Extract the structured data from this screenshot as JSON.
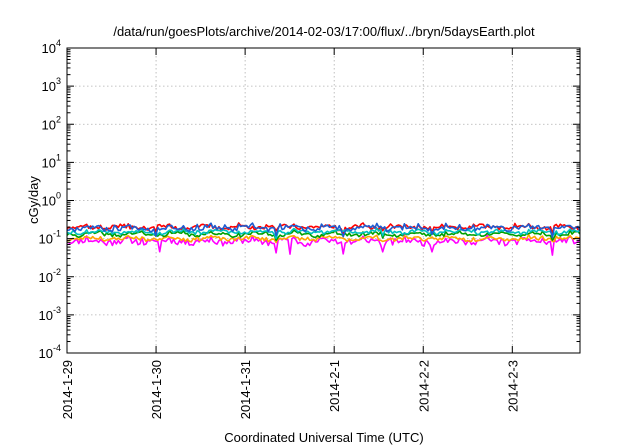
{
  "chart_data": {
    "type": "line",
    "title": "/data/run/goesPlots/archive/2014-02-03/17:00/flux/../bryn/5daysEarth.plot",
    "xlabel": "Coordinated Universal Time (UTC)",
    "ylabel": "cGy/day",
    "yscale": "log",
    "ylim": [
      0.0001,
      10000
    ],
    "xlim": [
      0,
      5.76
    ],
    "x_unit": "days since 2014-1-29 00:00 UTC",
    "x_ticks": [
      {
        "x": 0,
        "label": "2014-1-29"
      },
      {
        "x": 1,
        "label": "2014-1-30"
      },
      {
        "x": 2,
        "label": "2014-1-31"
      },
      {
        "x": 3,
        "label": "2014-2-1"
      },
      {
        "x": 4,
        "label": "2014-2-2"
      },
      {
        "x": 5,
        "label": "2014-2-3"
      }
    ],
    "y_ticks": [
      {
        "value": 0.0001,
        "base": "10",
        "exp": "-4"
      },
      {
        "value": 0.001,
        "base": "10",
        "exp": "-3"
      },
      {
        "value": 0.01,
        "base": "10",
        "exp": "-2"
      },
      {
        "value": 0.1,
        "base": "10",
        "exp": "-1"
      },
      {
        "value": 1,
        "base": "10",
        "exp": "0"
      },
      {
        "value": 10,
        "base": "10",
        "exp": "1"
      },
      {
        "value": 100,
        "base": "10",
        "exp": "2"
      },
      {
        "value": 1000,
        "base": "10",
        "exp": "3"
      },
      {
        "value": 10000,
        "base": "10",
        "exp": "4"
      }
    ],
    "grid": true,
    "legend": "none",
    "series": [
      {
        "color": "#ff00ff",
        "base": 0.085,
        "amp": 0.18,
        "dip_depth": 0.5,
        "dips": [
          1.05,
          2.35,
          2.5,
          3.1,
          3.55,
          4.1,
          5.45
        ],
        "seed": 11
      },
      {
        "color": "#ffa500",
        "base": 0.1,
        "amp": 0.1,
        "dip_depth": 0.15,
        "dips": [
          2.35,
          3.55,
          5.45
        ],
        "seed": 23
      },
      {
        "color": "#ff0000",
        "base": 0.2,
        "amp": 0.12,
        "dip_depth": 0.3,
        "dips": [
          1.0,
          2.35,
          3.1,
          4.1,
          5.45
        ],
        "seed": 37
      },
      {
        "color": "#00a000",
        "base": 0.13,
        "amp": 0.1,
        "dip_depth": 0.2,
        "dips": [
          2.35,
          3.55,
          5.45
        ],
        "seed": 41
      },
      {
        "color": "#00c0c0",
        "base": 0.15,
        "amp": 0.1,
        "dip_depth": 0.2,
        "dips": [
          2.35,
          3.55,
          5.45
        ],
        "seed": 53
      },
      {
        "color": "#1e5cd0",
        "base": 0.19,
        "amp": 0.14,
        "dip_depth": 0.35,
        "dips": [
          1.0,
          2.35,
          3.1,
          4.1,
          5.45
        ],
        "seed": 67
      }
    ]
  }
}
